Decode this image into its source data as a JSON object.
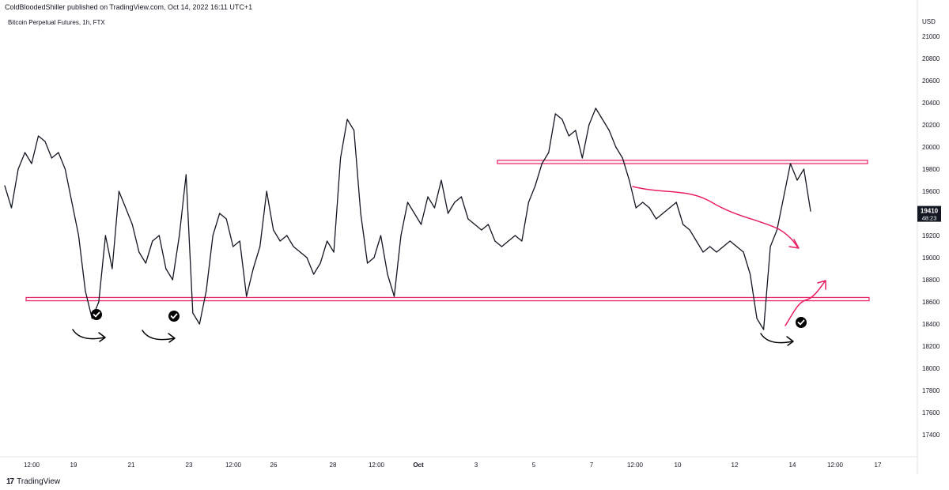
{
  "header": {
    "publisher": "ColdBloodedShiller published on TradingView.com, Oct 14, 2022 16:11 UTC+1",
    "symbol": "Bitcoin Perpetual Futures, 1h, FTX"
  },
  "footer": {
    "logo_mark": "17",
    "logo_text": "TradingView"
  },
  "chart_data": {
    "type": "line",
    "currency": "USD",
    "ylim": [
      17200,
      21200
    ],
    "y_ticks": [
      17400,
      17600,
      17800,
      18000,
      18200,
      18400,
      18600,
      18800,
      19000,
      19200,
      19400,
      19600,
      19800,
      20000,
      20200,
      20400,
      20600,
      20800,
      21000
    ],
    "x_ticks": [
      "12:00",
      "19",
      "21",
      "23",
      "12:00",
      "26",
      "28",
      "12:00",
      "Oct",
      "3",
      "5",
      "7",
      "12:00",
      "10",
      "12",
      "14",
      "12:00",
      "17"
    ],
    "last_price": "19410",
    "countdown": "48:23",
    "support_zone": [
      18610,
      18640
    ],
    "resistance_zone": [
      19850,
      19880
    ],
    "series": [
      {
        "values": [
          19650,
          19450,
          19800,
          19950,
          19850,
          20100,
          20050,
          19900,
          19950,
          19800,
          19500,
          19200,
          18700,
          18450,
          18600,
          19200,
          18900,
          19600,
          19450,
          19300,
          19050,
          18950,
          19150,
          19200,
          18900,
          18800,
          19200,
          19750,
          18500,
          18400,
          18700,
          19200,
          19400,
          19350,
          19100,
          19150,
          18650,
          18900,
          19100,
          19600,
          19250,
          19150,
          19200,
          19100,
          19050,
          19000,
          18850,
          18950,
          19150,
          19050,
          19900,
          20250,
          20150,
          19400,
          18950,
          19000,
          19200,
          18850,
          18650,
          19200,
          19500,
          19400,
          19300,
          19550,
          19450,
          19700,
          19400,
          19500,
          19550,
          19350,
          19300,
          19250,
          19300,
          19150,
          19100,
          19150,
          19200,
          19150,
          19500,
          19650,
          19850,
          19950,
          20300,
          20250,
          20100,
          20150,
          19900,
          20200,
          20350,
          20250,
          20150,
          20000,
          19900,
          19700,
          19450,
          19500,
          19450,
          19350,
          19400,
          19450,
          19500,
          19300,
          19250,
          19150,
          19050,
          19100,
          19050,
          19100,
          19150,
          19100,
          19050,
          18850,
          18450,
          18350,
          19100,
          19250,
          19550,
          19850,
          19700,
          19800,
          19420
        ]
      }
    ]
  },
  "annotations": {
    "checkmarks": 3,
    "curved_arrows": 3,
    "trend_arrows": 2,
    "colors": {
      "line": "#131722",
      "zone": "#e91e63",
      "arrow": "#e91e63",
      "check": "#000000"
    }
  }
}
